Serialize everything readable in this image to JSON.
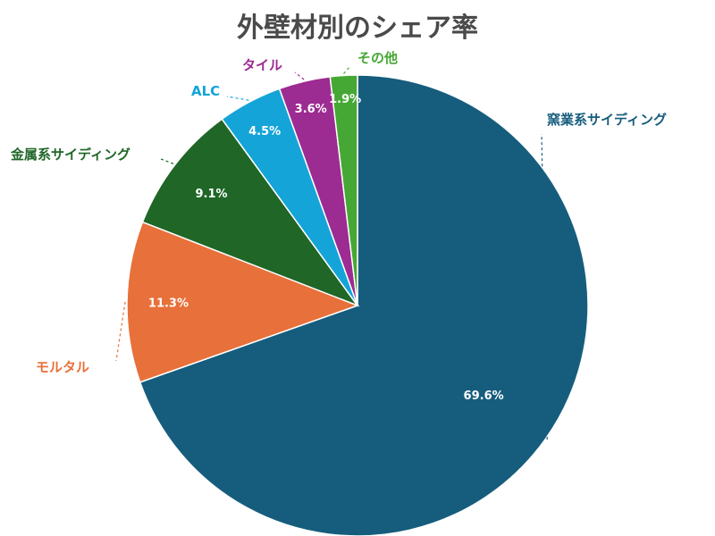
{
  "chart_data": {
    "type": "pie",
    "title": "外壁材別のシェア率",
    "slices": [
      {
        "label": "窯業系サイディング",
        "value": 69.6,
        "value_label": "69.6%",
        "color": "#165d7d"
      },
      {
        "label": "モルタル",
        "value": 11.3,
        "value_label": "11.3%",
        "color": "#e8703a"
      },
      {
        "label": "金属系サイディング",
        "value": 9.1,
        "value_label": "9.1%",
        "color": "#1f6627"
      },
      {
        "label": "ALC",
        "value": 4.5,
        "value_label": "4.5%",
        "color": "#14a4d8"
      },
      {
        "label": "タイル",
        "value": 3.6,
        "value_label": "3.6%",
        "color": "#9c2b92"
      },
      {
        "label": "その他",
        "value": 1.9,
        "value_label": "1.9%",
        "color": "#46a834"
      }
    ],
    "start": "top",
    "direction": "clockwise",
    "legend": "none",
    "label_text_color": "#ffffff",
    "title_color": "#4a4a4a"
  }
}
